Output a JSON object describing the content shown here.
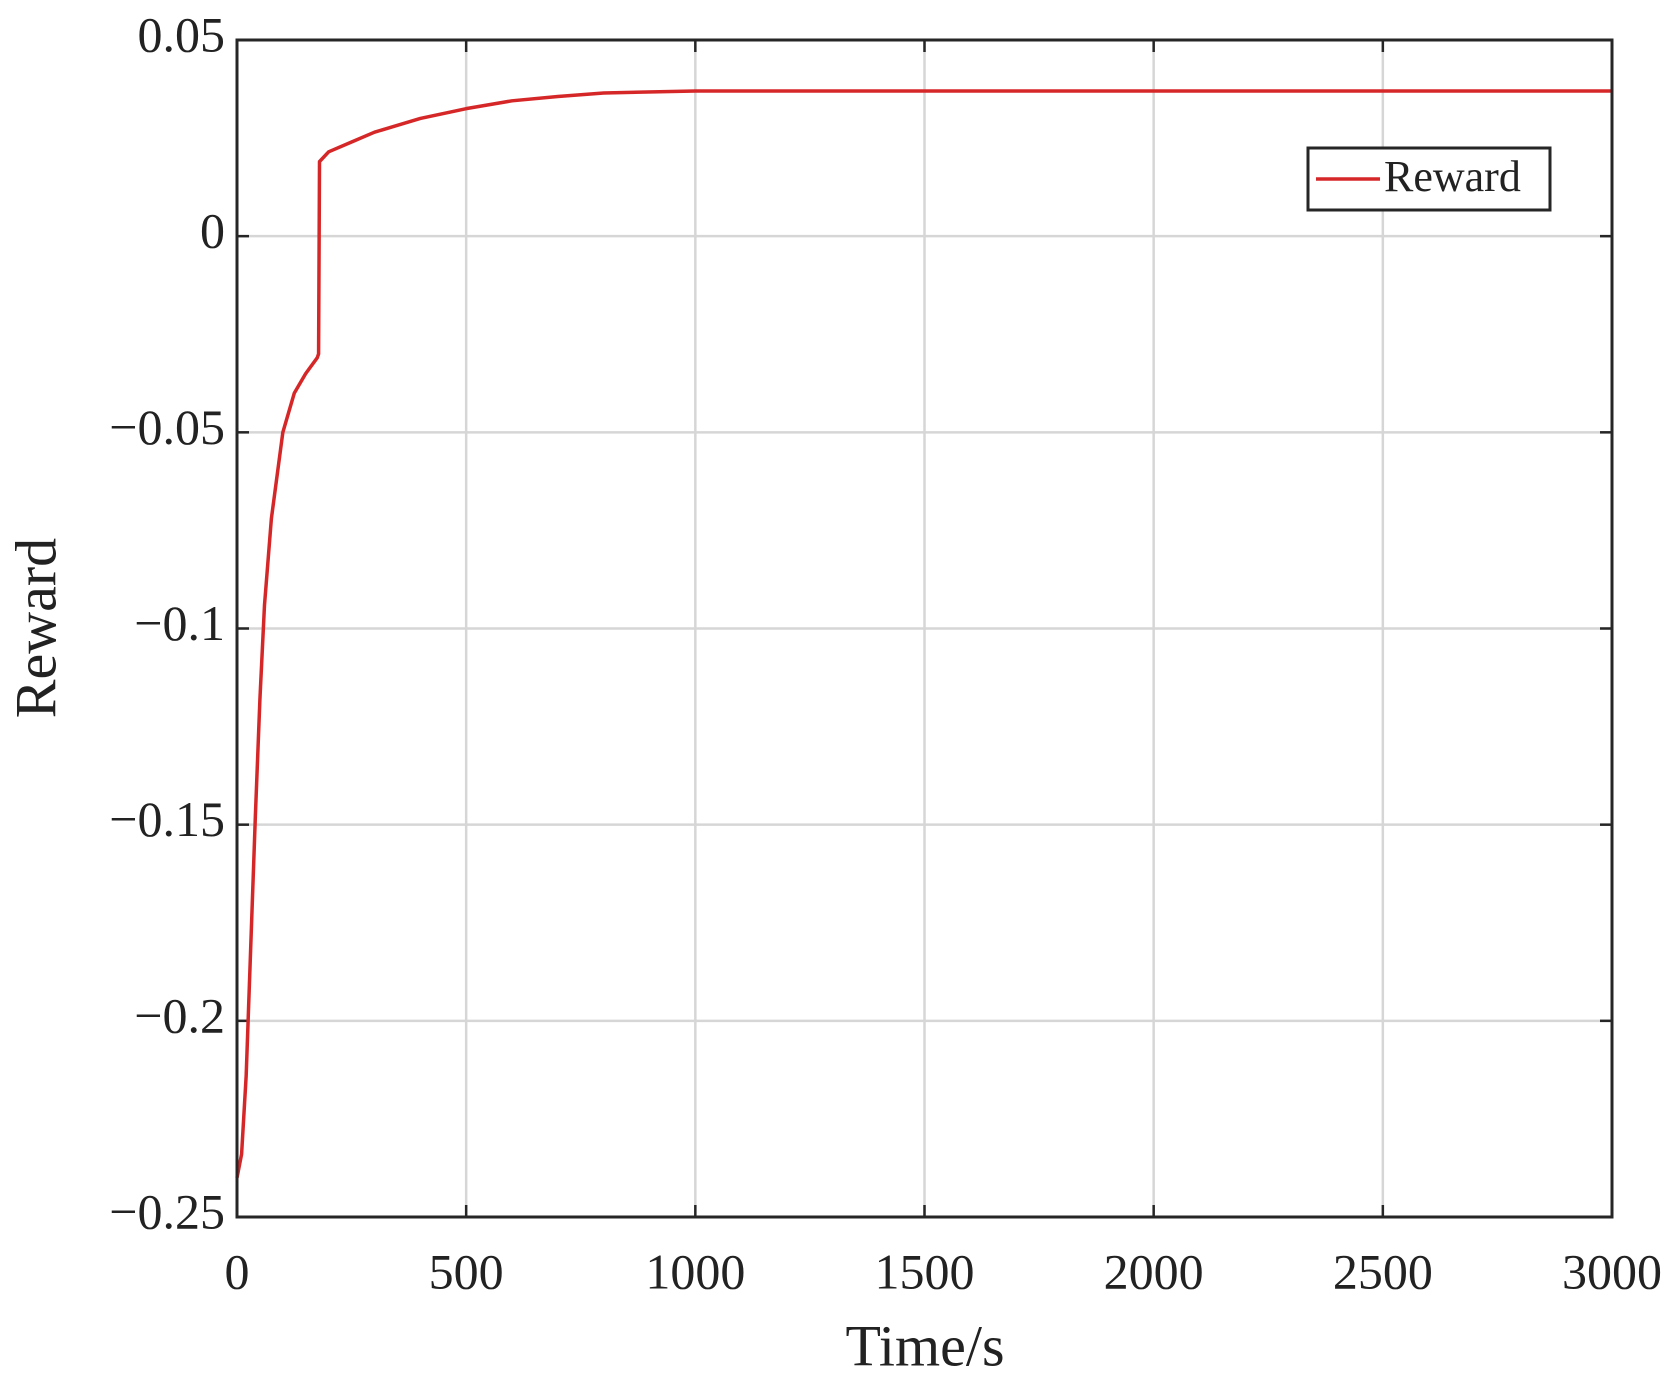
{
  "chart_data": {
    "type": "line",
    "xlabel": "Time/s",
    "ylabel": "Reward",
    "x": [
      0,
      10,
      20,
      30,
      40,
      50,
      60,
      75,
      100,
      125,
      150,
      175,
      178,
      180,
      200,
      250,
      300,
      400,
      500,
      600,
      700,
      800,
      1000,
      3000
    ],
    "series": [
      {
        "name": "Reward",
        "color": "#d62728",
        "values": [
          -0.24,
          -0.234,
          -0.214,
          -0.181,
          -0.148,
          -0.118,
          -0.094,
          -0.072,
          -0.05,
          -0.04,
          -0.035,
          -0.031,
          -0.03,
          0.019,
          0.0215,
          0.024,
          0.0265,
          0.03,
          0.0325,
          0.0345,
          0.0356,
          0.0365,
          0.037,
          0.037
        ]
      }
    ],
    "xlim": [
      0,
      3000
    ],
    "xticks": [
      0,
      500,
      1000,
      1500,
      2000,
      2500,
      3000
    ],
    "ylim": [
      -0.25,
      0.05
    ],
    "yticks": [
      {
        "value": -0.25,
        "label": "−0.25"
      },
      {
        "value": -0.2,
        "label": "−0.2"
      },
      {
        "value": -0.15,
        "label": "−0.15"
      },
      {
        "value": -0.1,
        "label": "−0.1"
      },
      {
        "value": -0.05,
        "label": "−0.05"
      },
      0,
      0.05
    ],
    "grid": true,
    "legend": "upper right"
  }
}
